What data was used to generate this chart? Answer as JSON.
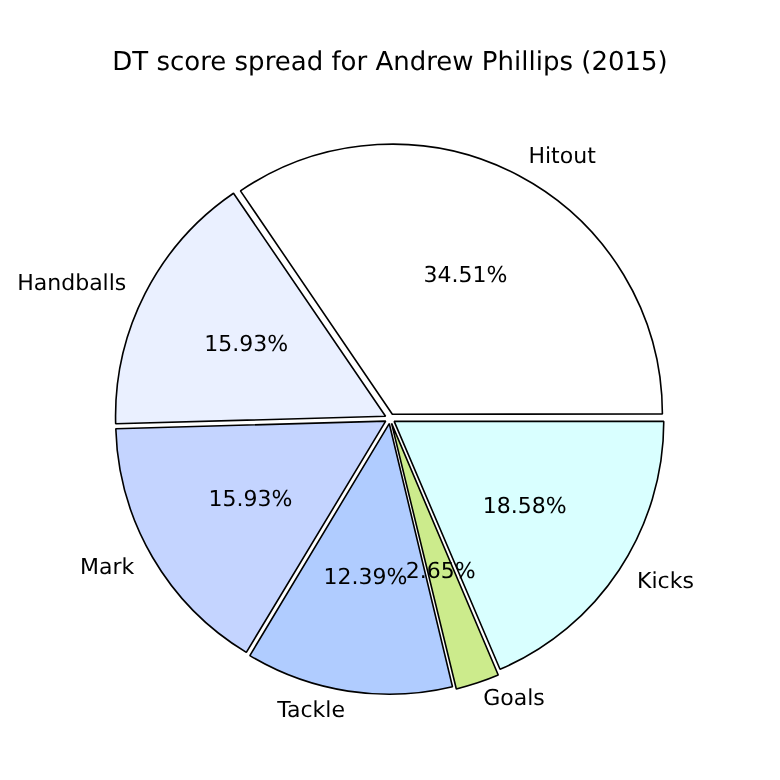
{
  "chart_data": {
    "type": "pie",
    "title": "DT score spread for Andrew Phillips (2015)",
    "categories": [
      "Kicks",
      "Goals",
      "Tackle",
      "Mark",
      "Handballs",
      "Hitout"
    ],
    "values": [
      18.58,
      2.65,
      12.39,
      15.93,
      15.93,
      34.51
    ],
    "value_labels": [
      "18.58%",
      "2.65%",
      "12.39%",
      "15.93%",
      "15.93%",
      "34.51%"
    ],
    "colors": [
      "#d9ffff",
      "#cceb8c",
      "#b0ccff",
      "#c4d4ff",
      "#eaf0ff",
      "#ffffff"
    ],
    "legend": false
  }
}
